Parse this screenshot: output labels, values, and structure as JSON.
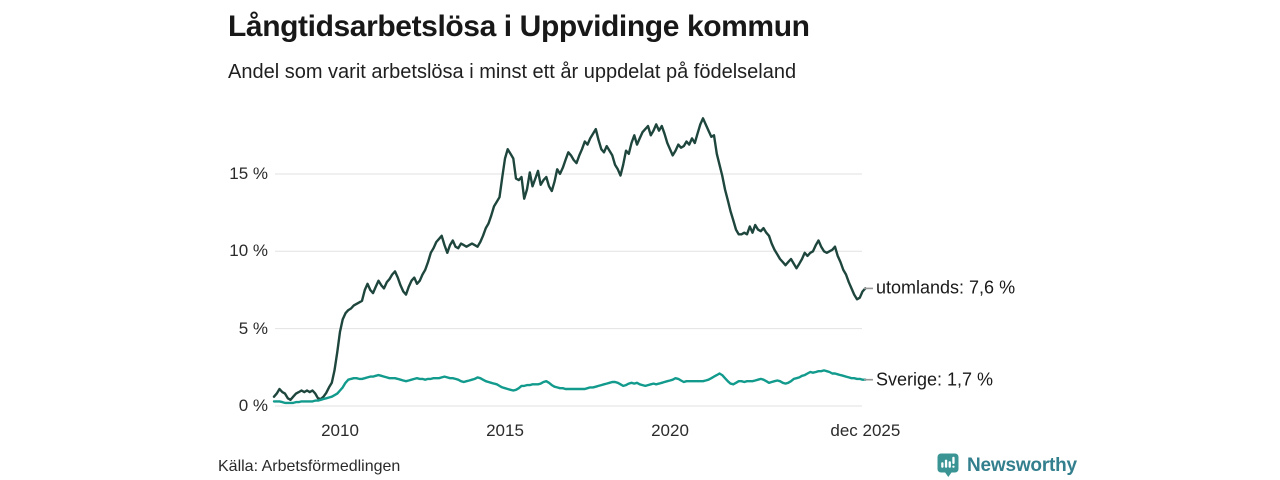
{
  "header": {
    "title": "Långtidsarbetslösa i Uppvidinge kommun",
    "subtitle": "Andel som varit arbetslösa i minst ett år uppdelat på födelseland"
  },
  "footer": {
    "source": "Källa: Arbetsförmedlingen",
    "brand": "Newsworthy"
  },
  "colors": {
    "utomlands_line": "#1e463d",
    "sverige_line": "#129b8d",
    "grid": "#e2e2e2",
    "label_dash": "#999999",
    "brand_icon": "#3b9494",
    "brand_text": "#337f8e"
  },
  "chart_data": {
    "type": "line",
    "title": "Långtidsarbetslösa i Uppvidinge kommun",
    "subtitle": "Andel som varit arbetslösa i minst ett år uppdelat på födelseland",
    "unit": "%",
    "x_start_year": 2008,
    "x_step_months": 1,
    "ylim": [
      0,
      19
    ],
    "grid": "horizontal-only",
    "legend_position": "right-of-line-end",
    "y_ticks": [
      {
        "value": 15,
        "label": "15 %"
      },
      {
        "value": 10,
        "label": "10 %"
      },
      {
        "value": 5,
        "label": "5 %"
      },
      {
        "value": 0,
        "label": "0 %"
      }
    ],
    "x_ticks": [
      {
        "year": 2010,
        "label": "2010"
      },
      {
        "year": 2015,
        "label": "2015"
      },
      {
        "year": 2020,
        "label": "2020"
      },
      {
        "year": 2025.92,
        "label": "dec 2025"
      }
    ],
    "series": [
      {
        "key": "utomlands",
        "name": "utomlands",
        "end_label": "utomlands: 7,6 %",
        "end_value": "7,6 %",
        "color": "#1e463d",
        "values": [
          0.6,
          0.8,
          1.1,
          0.9,
          0.8,
          0.5,
          0.4,
          0.6,
          0.8,
          0.9,
          1.0,
          0.9,
          1.0,
          0.9,
          1.0,
          0.8,
          0.5,
          0.45,
          0.6,
          0.85,
          1.2,
          1.5,
          2.3,
          3.5,
          4.8,
          5.6,
          6.0,
          6.2,
          6.3,
          6.5,
          6.6,
          6.7,
          6.8,
          7.5,
          7.9,
          7.5,
          7.3,
          7.7,
          8.1,
          7.8,
          7.6,
          8.0,
          8.2,
          8.5,
          8.7,
          8.3,
          7.8,
          7.4,
          7.2,
          7.7,
          8.1,
          8.3,
          7.9,
          8.1,
          8.5,
          8.8,
          9.3,
          9.9,
          10.2,
          10.6,
          10.8,
          11.0,
          10.4,
          9.9,
          10.4,
          10.7,
          10.3,
          10.2,
          10.5,
          10.4,
          10.3,
          10.4,
          10.5,
          10.4,
          10.3,
          10.6,
          11.0,
          11.5,
          11.8,
          12.3,
          12.9,
          13.2,
          13.5,
          14.8,
          16.0,
          16.6,
          16.3,
          16.0,
          14.7,
          14.6,
          14.8,
          13.4,
          14.0,
          15.1,
          14.2,
          14.7,
          15.2,
          14.3,
          14.6,
          14.8,
          14.2,
          13.9,
          14.5,
          15.3,
          15.0,
          15.4,
          15.9,
          16.4,
          16.2,
          15.9,
          15.7,
          16.2,
          16.6,
          17.1,
          16.9,
          17.3,
          17.6,
          17.9,
          17.2,
          16.6,
          16.4,
          16.8,
          16.5,
          16.2,
          15.6,
          15.3,
          14.9,
          15.6,
          16.5,
          16.3,
          17.0,
          17.5,
          16.9,
          17.3,
          17.7,
          17.9,
          18.1,
          17.5,
          17.8,
          18.2,
          17.8,
          18.1,
          17.6,
          17.0,
          16.6,
          16.2,
          16.5,
          16.9,
          16.7,
          16.8,
          17.1,
          16.9,
          17.3,
          17.0,
          17.6,
          18.2,
          18.6,
          18.2,
          17.8,
          17.4,
          17.5,
          16.3,
          15.6,
          14.9,
          14.0,
          13.3,
          12.6,
          12.0,
          11.4,
          11.1,
          11.1,
          11.2,
          11.1,
          11.6,
          11.2,
          11.7,
          11.4,
          11.3,
          11.5,
          11.2,
          11.0,
          10.5,
          10.1,
          9.8,
          9.5,
          9.3,
          9.1,
          9.3,
          9.5,
          9.2,
          8.9,
          9.2,
          9.5,
          9.9,
          9.7,
          9.9,
          10.0,
          10.4,
          10.7,
          10.3,
          10.0,
          9.9,
          10.0,
          10.1,
          10.3,
          9.7,
          9.3,
          8.8,
          8.5,
          8.0,
          7.6,
          7.2,
          6.9,
          7.0,
          7.4,
          7.6
        ]
      },
      {
        "key": "sverige",
        "name": "Sverige",
        "end_label": "Sverige: 1,7 %",
        "end_value": "1,7 %",
        "color": "#129b8d",
        "values": [
          0.3,
          0.3,
          0.3,
          0.25,
          0.2,
          0.2,
          0.2,
          0.2,
          0.25,
          0.25,
          0.3,
          0.3,
          0.3,
          0.3,
          0.3,
          0.35,
          0.35,
          0.4,
          0.45,
          0.5,
          0.55,
          0.6,
          0.7,
          0.8,
          1.0,
          1.2,
          1.5,
          1.7,
          1.75,
          1.8,
          1.8,
          1.75,
          1.75,
          1.8,
          1.85,
          1.9,
          1.9,
          1.95,
          2.0,
          1.95,
          1.9,
          1.85,
          1.8,
          1.8,
          1.8,
          1.75,
          1.7,
          1.65,
          1.6,
          1.65,
          1.7,
          1.75,
          1.8,
          1.75,
          1.75,
          1.7,
          1.75,
          1.75,
          1.8,
          1.8,
          1.8,
          1.85,
          1.9,
          1.85,
          1.8,
          1.8,
          1.75,
          1.7,
          1.6,
          1.55,
          1.6,
          1.65,
          1.7,
          1.75,
          1.85,
          1.8,
          1.7,
          1.6,
          1.55,
          1.5,
          1.45,
          1.4,
          1.3,
          1.2,
          1.15,
          1.1,
          1.05,
          1.0,
          1.05,
          1.15,
          1.3,
          1.3,
          1.35,
          1.35,
          1.4,
          1.4,
          1.4,
          1.45,
          1.55,
          1.6,
          1.5,
          1.35,
          1.25,
          1.2,
          1.15,
          1.15,
          1.1,
          1.1,
          1.1,
          1.1,
          1.1,
          1.1,
          1.1,
          1.1,
          1.15,
          1.2,
          1.2,
          1.25,
          1.3,
          1.35,
          1.4,
          1.45,
          1.5,
          1.55,
          1.55,
          1.5,
          1.4,
          1.3,
          1.35,
          1.45,
          1.5,
          1.45,
          1.5,
          1.4,
          1.35,
          1.3,
          1.35,
          1.4,
          1.45,
          1.4,
          1.45,
          1.5,
          1.55,
          1.6,
          1.65,
          1.7,
          1.8,
          1.75,
          1.65,
          1.55,
          1.6,
          1.6,
          1.6,
          1.6,
          1.6,
          1.6,
          1.6,
          1.65,
          1.7,
          1.8,
          1.9,
          2.0,
          2.1,
          2.0,
          1.8,
          1.6,
          1.45,
          1.4,
          1.5,
          1.6,
          1.6,
          1.55,
          1.6,
          1.6,
          1.6,
          1.65,
          1.7,
          1.75,
          1.7,
          1.6,
          1.5,
          1.55,
          1.6,
          1.65,
          1.6,
          1.5,
          1.45,
          1.5,
          1.6,
          1.75,
          1.8,
          1.85,
          1.95,
          2.0,
          2.1,
          2.2,
          2.15,
          2.2,
          2.25,
          2.25,
          2.3,
          2.25,
          2.2,
          2.1,
          2.1,
          2.05,
          2.0,
          1.95,
          1.9,
          1.85,
          1.8,
          1.8,
          1.75,
          1.75,
          1.7,
          1.7
        ]
      }
    ]
  }
}
